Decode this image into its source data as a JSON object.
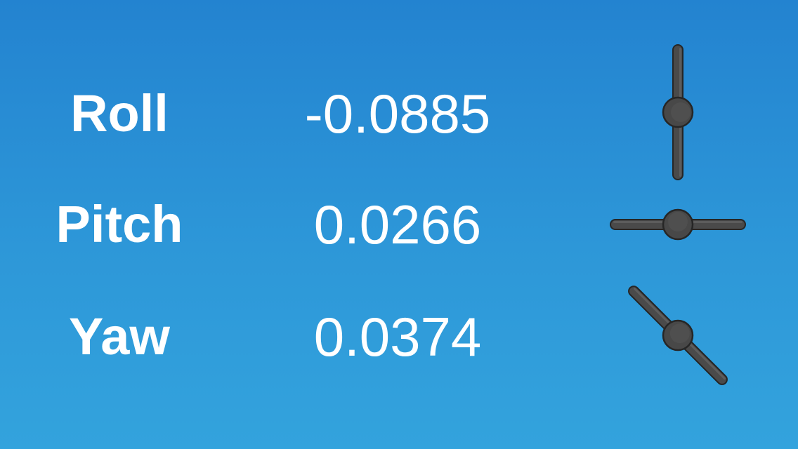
{
  "rows": [
    {
      "label": "Roll",
      "value": "-0.0885",
      "indicator_angle_deg": 90
    },
    {
      "label": "Pitch",
      "value": "0.0266",
      "indicator_angle_deg": 0
    },
    {
      "label": "Yaw",
      "value": "0.0374",
      "indicator_angle_deg": 45
    }
  ],
  "colors": {
    "background_top": "#2383d0",
    "background_bottom": "#33a3dd",
    "text": "#ffffff",
    "indicator_fill": "#4a4a4a",
    "indicator_stroke": "#262626"
  },
  "icons": {
    "roll": "roll-indicator-icon",
    "pitch": "pitch-indicator-icon",
    "yaw": "yaw-indicator-icon"
  }
}
